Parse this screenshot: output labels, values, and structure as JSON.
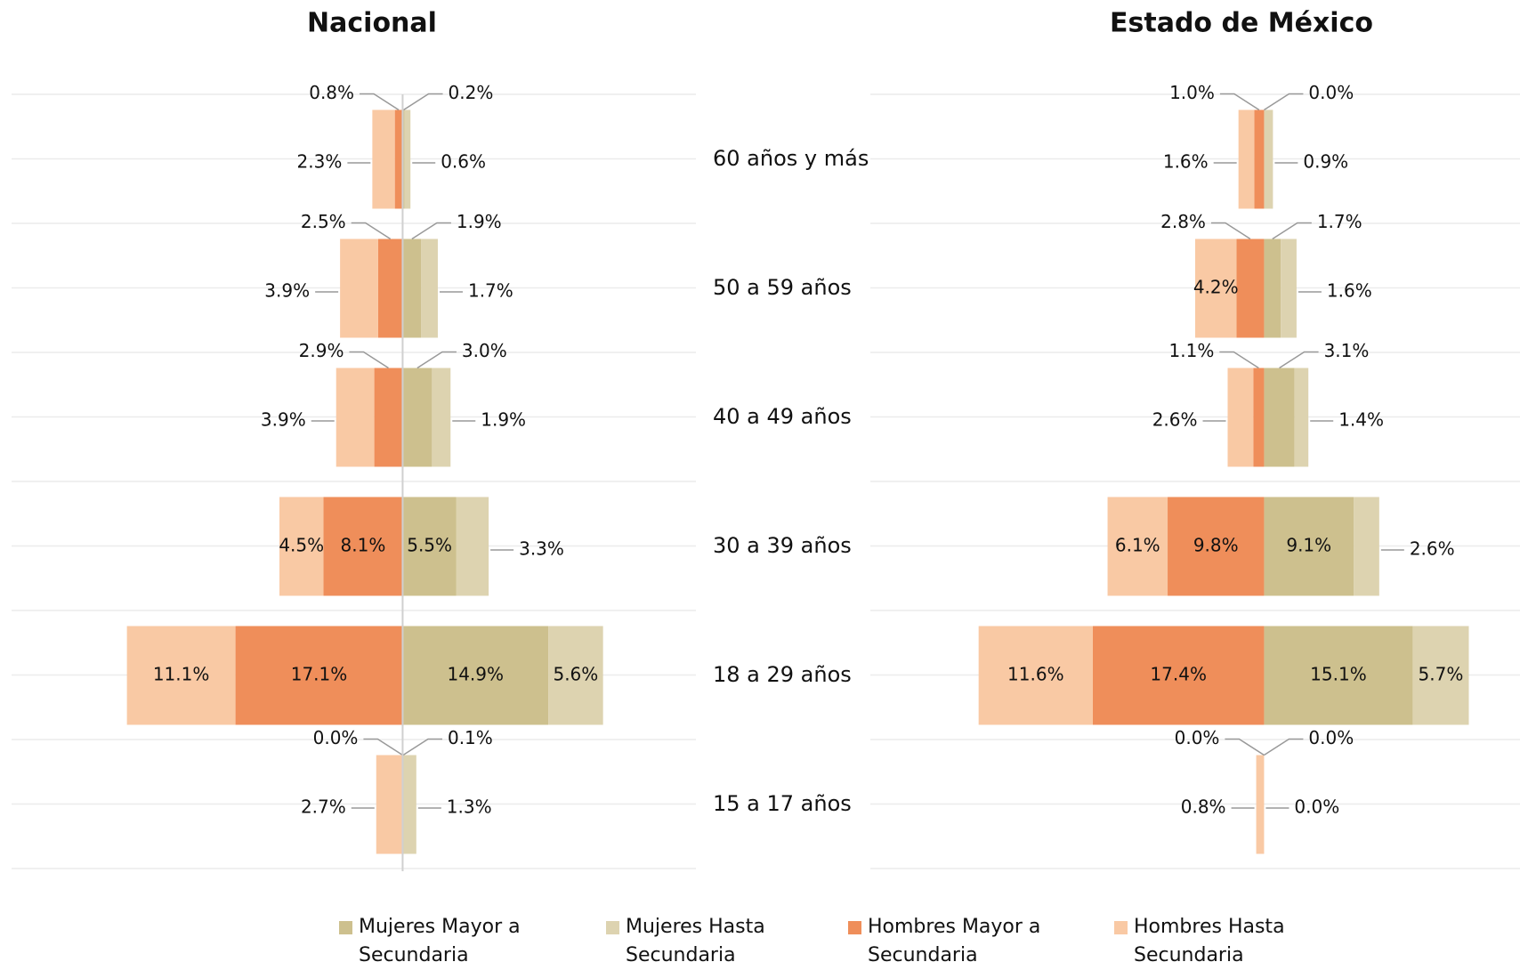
{
  "chart_data": [
    {
      "type": "bar",
      "title": "Nacional",
      "categories": [
        "60 años y más",
        "50 a 59 años",
        "40 a 49 años",
        "30 a 39 años",
        "18 a 29 años",
        "15 a 17 años"
      ],
      "xlim": [
        -40,
        30
      ],
      "series": [
        {
          "name": "Mujeres Mayor a Secundaria",
          "color": "#cdc08e",
          "values": [
            0.2,
            1.9,
            3.0,
            5.5,
            14.9,
            0.1
          ],
          "value_labels": [
            "0.2%",
            "1.9%",
            "3.0%",
            "5.5%",
            "14.9%",
            "0.1%"
          ]
        },
        {
          "name": "Mujeres Hasta Secundaria",
          "color": "#ddd3b0",
          "values": [
            0.6,
            1.7,
            1.9,
            3.3,
            5.6,
            1.3
          ],
          "value_labels": [
            "0.6%",
            "1.7%",
            "1.9%",
            "3.3%",
            "5.6%",
            "1.3%"
          ]
        },
        {
          "name": "Hombres Mayor a Secundaria",
          "color": "#ef8e5a",
          "values": [
            0.8,
            2.5,
            2.9,
            8.1,
            17.1,
            0.0
          ],
          "value_labels": [
            "0.8%",
            "2.5%",
            "2.9%",
            "8.1%",
            "17.1%",
            "0.0%"
          ]
        },
        {
          "name": "Hombres Hasta Secundaria",
          "color": "#f9c9a4",
          "values": [
            2.3,
            3.9,
            3.9,
            4.5,
            11.1,
            2.7
          ],
          "value_labels": [
            "2.3%",
            "3.9%",
            "3.9%",
            "4.5%",
            "11.1%",
            "2.7%"
          ]
        }
      ]
    },
    {
      "type": "bar",
      "title": "Estado de México",
      "xlim": [
        -40,
        26
      ],
      "series": [
        {
          "color": "#cdc08e",
          "values": [
            0.0,
            1.7,
            3.1,
            9.1,
            15.1,
            0.0
          ],
          "value_labels": [
            "0.0%",
            "1.7%",
            "3.1%",
            "9.1%",
            "15.1%",
            "0.0%"
          ]
        },
        {
          "color": "#ddd3b0",
          "values": [
            0.9,
            1.6,
            1.4,
            2.6,
            5.7,
            0.0
          ],
          "value_labels": [
            "0.9%",
            "1.6%",
            "1.4%",
            "2.6%",
            "5.7%",
            "0.0%"
          ]
        },
        {
          "color": "#ef8e5a",
          "values": [
            1.0,
            2.8,
            1.1,
            9.8,
            17.4,
            0.0
          ],
          "value_labels": [
            "1.0%",
            "2.8%",
            "1.1%",
            "9.8%",
            "17.4%",
            "0.0%"
          ]
        },
        {
          "color": "#f9c9a4",
          "values": [
            1.6,
            4.2,
            2.6,
            6.1,
            11.6,
            0.8
          ],
          "value_labels": [
            "1.6%",
            "4.2%",
            "2.6%",
            "6.1%",
            "11.6%",
            "0.8%"
          ]
        }
      ]
    }
  ]
}
